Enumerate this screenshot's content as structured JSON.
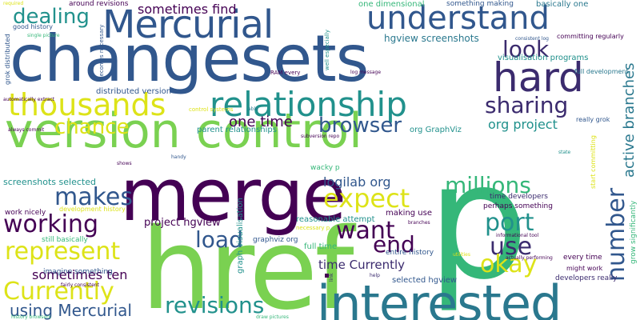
{
  "colors": {
    "purple": "#440154",
    "indigo": "#3b2b6e",
    "blue": "#31578d",
    "teal": "#21918c",
    "green": "#35b779",
    "lime": "#7ad151",
    "yellow": "#dde318"
  },
  "words": [
    "changesets",
    "version control",
    "merge",
    "p",
    "href",
    "interested",
    "Mercurial",
    "understand",
    "hard",
    "relationship",
    "thousands",
    "sharing",
    "dealing",
    "chance",
    "look",
    "browser",
    "expect",
    "millions",
    "makes",
    "port",
    "use",
    "working",
    "want",
    "end",
    "represent",
    "okay",
    "load",
    "revisions",
    "Currently",
    "using Mercurial",
    "number",
    "active branches",
    "sometimes find",
    "one time",
    "org project",
    "logilab org",
    "sometimes ten",
    "project hgview",
    "time Currently",
    "screenshots selected",
    "hgview screenshots",
    "visualisation programs",
    "one dimensional",
    "something making",
    "basically one",
    "around revisions",
    "good history",
    "distributed version",
    "parent relationships",
    "org GraphViz",
    "reasonable attempt",
    "making use",
    "selected hgview",
    "imagine something",
    "work nicely",
    "still basically",
    "perhaps something",
    "time developers",
    "developers really",
    "every time",
    "might work",
    "full time",
    "entire history",
    "graph visualisation",
    "graphviz org",
    "full development",
    "committing regularly",
    "really grok",
    "grow significantly",
    "start committing",
    "development history",
    "grok distributed",
    "RAM every",
    "wacky p",
    "control systems",
    "well especially",
    "becomes necessary",
    "automatically extract",
    "single picture",
    "consistent log",
    "log message",
    "subversion repo",
    "always commit",
    "history browsers",
    "fairly consistent",
    "draw pictures",
    "necessary p",
    "informational tool",
    "actually performing",
    "branches",
    "state",
    "handy",
    "shows",
    "help",
    "utilities",
    "link",
    "required",
    "able"
  ]
}
